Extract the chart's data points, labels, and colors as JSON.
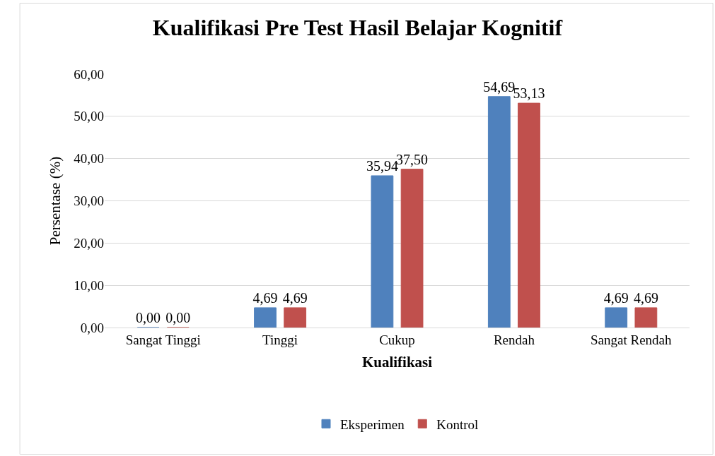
{
  "chart_data": {
    "type": "bar",
    "title": "Kualifikasi Pre Test Hasil Belajar Kognitif",
    "xlabel": "Kualifikasi",
    "ylabel": "Persentase (%)",
    "categories": [
      "Sangat Tinggi",
      "Tinggi",
      "Cukup",
      "Rendah",
      "Sangat Rendah"
    ],
    "series": [
      {
        "name": "Eksperimen",
        "color": "#4f81bd",
        "values": [
          0,
          4.69,
          35.94,
          54.69,
          4.69
        ],
        "value_labels": [
          "0,00",
          "4,69",
          "35,94",
          "54,69",
          "4,69"
        ]
      },
      {
        "name": "Kontrol",
        "color": "#c0504d",
        "values": [
          0,
          4.69,
          37.5,
          53.13,
          4.69
        ],
        "value_labels": [
          "0,00",
          "4,69",
          "37,50",
          "53,13",
          "4,69"
        ]
      }
    ],
    "ylim": [
      0,
      60
    ],
    "yticks": [
      {
        "value": 0,
        "label": "0,00"
      },
      {
        "value": 10,
        "label": "10,00"
      },
      {
        "value": 20,
        "label": "20,00"
      },
      {
        "value": 30,
        "label": "30,00"
      },
      {
        "value": 40,
        "label": "40,00"
      },
      {
        "value": 50,
        "label": "50,00"
      },
      {
        "value": 60,
        "label": "60,00"
      }
    ],
    "grid": "y",
    "legend": "bottom"
  }
}
